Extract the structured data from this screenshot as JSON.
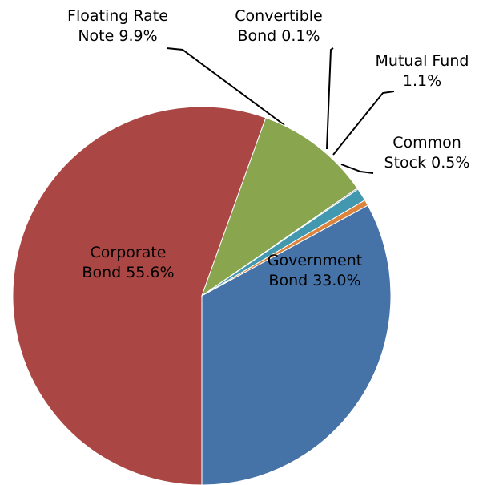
{
  "chart_data": {
    "type": "pie",
    "categories": [
      "Corporate Bond",
      "Floating Rate Note",
      "Convertible Bond",
      "Mutual Fund",
      "Common Stock",
      "Government Bond"
    ],
    "values": [
      55.6,
      9.9,
      0.1,
      1.1,
      0.5,
      33.0
    ],
    "value_labels": [
      "55.6%",
      "9.9%",
      "0.1%",
      "1.1%",
      "0.5%",
      "33.0%"
    ],
    "colors": [
      "#aa4643",
      "#89a54e",
      "#71588f",
      "#4198af",
      "#db843d",
      "#4572a7"
    ]
  }
}
